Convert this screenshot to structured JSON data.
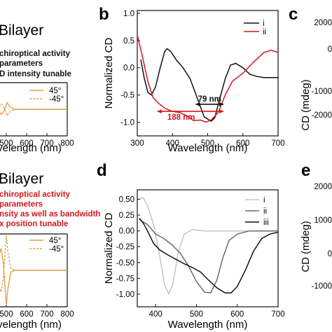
{
  "left_text": {
    "top": {
      "title": "Bilayer",
      "lines": [
        "chiroptical activity",
        "parameters",
        "D intensity tunable"
      ]
    },
    "bottom": {
      "title": "Bilayer",
      "lines": [
        "chiroptical activity",
        "parameters",
        "nsity as well as bandwidth",
        "x position tunable"
      ]
    }
  },
  "right_edge": {
    "c": {
      "letter": "c",
      "ylabel": "CD (mdeg)",
      "ticks": [
        "2000",
        "0",
        "-1000",
        "-2000"
      ]
    },
    "e": {
      "letter": "e",
      "ylabel": "CD (mdeg)",
      "ticks": [
        "2000",
        "1000",
        "0",
        "-1000"
      ]
    }
  },
  "chart_data": [
    {
      "id": "a",
      "type": "line",
      "xlabel": "velength (nm)",
      "x_ticks": [
        "00",
        "500",
        "600",
        "700",
        "800"
      ],
      "xlim": [
        400,
        800
      ],
      "ylim": [
        -1,
        1
      ],
      "legend": [
        "45°",
        "-45°"
      ],
      "series": [
        {
          "name": "45°",
          "color": "#e2a04c",
          "dash": false,
          "points": [
            [
              400,
              0
            ],
            [
              440,
              0
            ],
            [
              462,
              -0.05
            ],
            [
              476,
              -0.2
            ],
            [
              486,
              -0.1
            ],
            [
              494,
              0.05
            ],
            [
              504,
              0.25
            ],
            [
              514,
              0.12
            ],
            [
              526,
              0.06
            ],
            [
              540,
              0
            ],
            [
              800,
              0
            ]
          ]
        },
        {
          "name": "-45°",
          "color": "#e2a04c",
          "dash": true,
          "points": [
            [
              400,
              0
            ],
            [
              440,
              0
            ],
            [
              462,
              0.05
            ],
            [
              476,
              0.2
            ],
            [
              486,
              0.1
            ],
            [
              494,
              -0.05
            ],
            [
              504,
              -0.25
            ],
            [
              514,
              -0.12
            ],
            [
              526,
              -0.06
            ],
            [
              540,
              0
            ],
            [
              800,
              0
            ]
          ]
        }
      ]
    },
    {
      "id": "b",
      "letter": "b",
      "type": "line",
      "xlabel": "Wavelength (nm)",
      "ylabel": "Normalized CD",
      "xlim": [
        300,
        700
      ],
      "ylim": [
        -1.25,
        1.05
      ],
      "x_ticks": [
        300,
        400,
        500,
        600,
        700
      ],
      "y_ticks": [
        1.0,
        0.5,
        0.0,
        -0.5,
        -1.0
      ],
      "y_tick_labels": [
        "1.0",
        "0.5",
        "0.0",
        "-0.5",
        "-1.0"
      ],
      "legend": [
        "i",
        "ii"
      ],
      "annotations": [
        {
          "label": "79 nm",
          "x1": 466,
          "x2": 545,
          "y": -0.67,
          "color": "#111111"
        },
        {
          "label": "188 nm",
          "x1": 357,
          "x2": 545,
          "y": -0.8,
          "color": "#d0191e"
        }
      ],
      "series": [
        {
          "name": "i",
          "color": "#111111",
          "points": [
            [
              310,
              0.15
            ],
            [
              320,
              -0.2
            ],
            [
              330,
              -0.45
            ],
            [
              340,
              -0.5
            ],
            [
              352,
              -0.35
            ],
            [
              365,
              0
            ],
            [
              378,
              0.3
            ],
            [
              385,
              0.35
            ],
            [
              395,
              0.3
            ],
            [
              410,
              0.15
            ],
            [
              430,
              0.0
            ],
            [
              450,
              -0.2
            ],
            [
              470,
              -0.55
            ],
            [
              490,
              -0.9
            ],
            [
              510,
              -0.98
            ],
            [
              520,
              -0.92
            ],
            [
              535,
              -0.55
            ],
            [
              550,
              -0.2
            ],
            [
              565,
              0.05
            ],
            [
              580,
              0.08
            ],
            [
              600,
              0.0
            ],
            [
              620,
              -0.12
            ],
            [
              640,
              -0.16
            ],
            [
              660,
              -0.18
            ],
            [
              680,
              -0.18
            ],
            [
              700,
              -0.18
            ]
          ]
        },
        {
          "name": "ii",
          "color": "#d0191e",
          "points": [
            [
              300,
              0.6
            ],
            [
              315,
              0.2
            ],
            [
              330,
              -0.25
            ],
            [
              345,
              -0.55
            ],
            [
              360,
              -0.65
            ],
            [
              380,
              -0.75
            ],
            [
              400,
              -0.8
            ],
            [
              420,
              -0.82
            ],
            [
              440,
              -0.88
            ],
            [
              460,
              -0.97
            ],
            [
              480,
              -0.96
            ],
            [
              495,
              -1.0
            ],
            [
              510,
              -0.96
            ],
            [
              530,
              -0.82
            ],
            [
              550,
              -0.5
            ],
            [
              570,
              -0.25
            ],
            [
              600,
              -0.1
            ],
            [
              630,
              0.1
            ],
            [
              660,
              0.28
            ],
            [
              680,
              0.32
            ],
            [
              700,
              0.28
            ]
          ]
        }
      ]
    },
    {
      "id": "c",
      "type": "line",
      "xlabel": "velength (nm)",
      "x_ticks": [
        "00",
        "500",
        "600",
        "700",
        "800"
      ],
      "xlim": [
        400,
        800
      ],
      "ylim": [
        -1,
        1
      ],
      "legend": [
        "45°",
        "-45°"
      ],
      "series": [
        {
          "name": "45°",
          "color": "#e2a04c",
          "dash": false,
          "points": [
            [
              400,
              0
            ],
            [
              430,
              0
            ],
            [
              450,
              0.05
            ],
            [
              466,
              0.45
            ],
            [
              474,
              0.6
            ],
            [
              486,
              0.2
            ],
            [
              494,
              -0.5
            ],
            [
              500,
              -0.95
            ],
            [
              508,
              -0.5
            ],
            [
              522,
              -0.05
            ],
            [
              540,
              0
            ],
            [
              800,
              0
            ]
          ]
        },
        {
          "name": "-45°",
          "color": "#e2a04c",
          "dash": true,
          "points": [
            [
              400,
              0
            ],
            [
              430,
              0
            ],
            [
              450,
              -0.05
            ],
            [
              466,
              -0.45
            ],
            [
              474,
              -0.6
            ],
            [
              486,
              -0.2
            ],
            [
              494,
              0.5
            ],
            [
              500,
              0.95
            ],
            [
              508,
              0.5
            ],
            [
              522,
              0.05
            ],
            [
              540,
              0
            ],
            [
              800,
              0
            ]
          ]
        }
      ]
    },
    {
      "id": "d",
      "letter": "d",
      "type": "line",
      "xlabel": "Wavelength (nm)",
      "ylabel": "Normalized CD",
      "xlim": [
        355,
        700
      ],
      "ylim": [
        -1.2,
        0.65
      ],
      "x_ticks": [
        400,
        500,
        600,
        700
      ],
      "y_ticks": [
        0.5,
        0.25,
        0.0,
        -0.25,
        -0.5,
        -0.75,
        -1.0
      ],
      "y_tick_labels": [
        "0.50",
        "0.25",
        "0.00",
        "-0.25",
        "-0.50",
        "-0.75",
        "-1.00"
      ],
      "legend": [
        "i",
        "ii",
        "iii"
      ],
      "series": [
        {
          "name": "i",
          "color": "#c6c6c6",
          "points": [
            [
              360,
              0.52
            ],
            [
              370,
              0.52
            ],
            [
              380,
              0.4
            ],
            [
              395,
              0.1
            ],
            [
              410,
              -0.4
            ],
            [
              422,
              -0.85
            ],
            [
              432,
              -1.0
            ],
            [
              442,
              -0.85
            ],
            [
              455,
              -0.35
            ],
            [
              470,
              -0.05
            ],
            [
              490,
              0.02
            ],
            [
              520,
              0.0
            ],
            [
              700,
              0.0
            ]
          ]
        },
        {
          "name": "ii",
          "color": "#6b6b6b",
          "points": [
            [
              360,
              0.18
            ],
            [
              380,
              0.1
            ],
            [
              400,
              -0.05
            ],
            [
              420,
              -0.12
            ],
            [
              440,
              -0.22
            ],
            [
              460,
              -0.35
            ],
            [
              480,
              -0.55
            ],
            [
              500,
              -0.8
            ],
            [
              520,
              -0.97
            ],
            [
              535,
              -0.98
            ],
            [
              550,
              -0.78
            ],
            [
              565,
              -0.42
            ],
            [
              580,
              -0.15
            ],
            [
              600,
              -0.05
            ],
            [
              630,
              0.0
            ],
            [
              700,
              0.0
            ]
          ]
        },
        {
          "name": "iii",
          "color": "#111111",
          "points": [
            [
              360,
              0.2
            ],
            [
              370,
              0.12
            ],
            [
              380,
              0.0
            ],
            [
              395,
              -0.2
            ],
            [
              410,
              -0.3
            ],
            [
              430,
              -0.38
            ],
            [
              450,
              -0.45
            ],
            [
              470,
              -0.52
            ],
            [
              490,
              -0.58
            ],
            [
              510,
              -0.65
            ],
            [
              530,
              -0.78
            ],
            [
              550,
              -0.9
            ],
            [
              570,
              -0.98
            ],
            [
              585,
              -0.98
            ],
            [
              600,
              -0.88
            ],
            [
              620,
              -0.62
            ],
            [
              640,
              -0.32
            ],
            [
              660,
              -0.12
            ],
            [
              680,
              -0.05
            ],
            [
              700,
              -0.02
            ]
          ]
        }
      ]
    }
  ]
}
